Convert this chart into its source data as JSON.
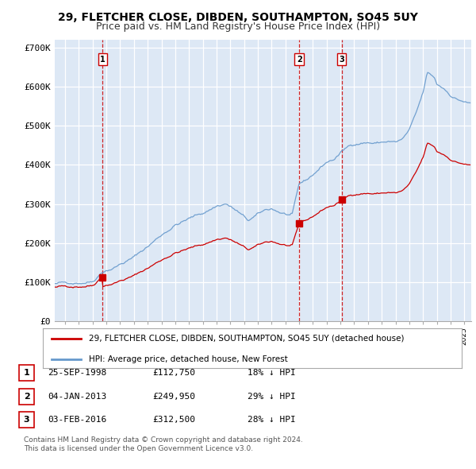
{
  "title": "29, FLETCHER CLOSE, DIBDEN, SOUTHAMPTON, SO45 5UY",
  "subtitle": "Price paid vs. HM Land Registry's House Price Index (HPI)",
  "ylim": [
    0,
    720000
  ],
  "xlim_start": 1995.25,
  "xlim_end": 2025.5,
  "sale_dates": [
    1998.73,
    2013.01,
    2016.09
  ],
  "sale_prices": [
    112750,
    249950,
    312500
  ],
  "sale_labels": [
    "1",
    "2",
    "3"
  ],
  "legend_red": "29, FLETCHER CLOSE, DIBDEN, SOUTHAMPTON, SO45 5UY (detached house)",
  "legend_blue": "HPI: Average price, detached house, New Forest",
  "table_rows": [
    [
      "1",
      "25-SEP-1998",
      "£112,750",
      "18% ↓ HPI"
    ],
    [
      "2",
      "04-JAN-2013",
      "£249,950",
      "29% ↓ HPI"
    ],
    [
      "3",
      "03-FEB-2016",
      "£312,500",
      "28% ↓ HPI"
    ]
  ],
  "footnote1": "Contains HM Land Registry data © Crown copyright and database right 2024.",
  "footnote2": "This data is licensed under the Open Government Licence v3.0.",
  "bg_color": "#ffffff",
  "plot_bg_color": "#dde8f5",
  "grid_color": "#ffffff",
  "red_line_color": "#cc0000",
  "blue_line_color": "#6699cc",
  "vline_color": "#cc0000",
  "title_fontsize": 10,
  "subtitle_fontsize": 9
}
